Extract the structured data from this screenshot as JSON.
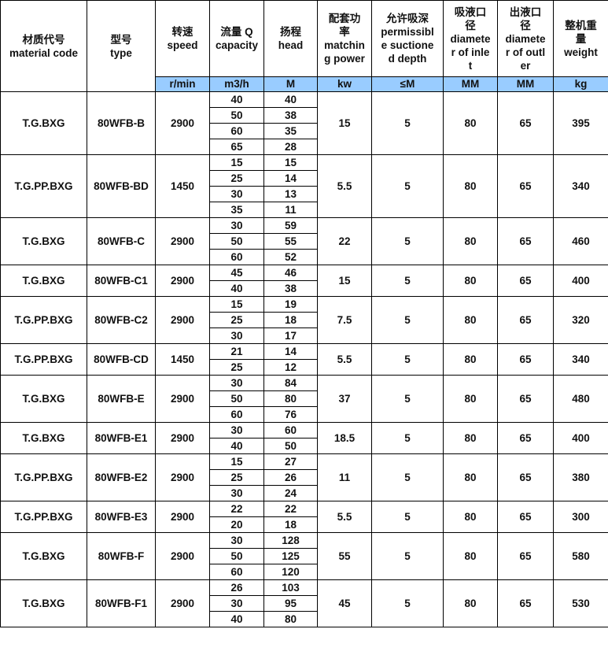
{
  "headers": [
    "材质代号\nmaterial code",
    "型号\ntype",
    "转速\nspeed",
    "流量 Q\ncapacity",
    "扬程\nhead",
    "配套功\n率\nmatchin\ng power",
    "允许吸深\npermissibl\ne suctione\nd depth",
    "吸液口\n径\ndiamete\nr of inle\nt",
    "出液口\n径\ndiamete\nr of outl\ner",
    "整机重\n量\nweight"
  ],
  "units": [
    "r/min",
    "m3/h",
    "M",
    "kw",
    "≤M",
    "MM",
    "MM",
    "kg"
  ],
  "unit_color": "#99ccff",
  "groups": [
    {
      "material": "T.G.BXG",
      "type": "80WFB-B",
      "speed": "2900",
      "flows": [
        [
          "40",
          "40"
        ],
        [
          "50",
          "38"
        ],
        [
          "60",
          "35"
        ],
        [
          "65",
          "28"
        ]
      ],
      "power": "15",
      "suction": "5",
      "inlet": "80",
      "outlet": "65",
      "weight": "395"
    },
    {
      "material": "T.G.PP.BXG",
      "type": "80WFB-BD",
      "speed": "1450",
      "flows": [
        [
          "15",
          "15"
        ],
        [
          "25",
          "14"
        ],
        [
          "30",
          "13"
        ],
        [
          "35",
          "11"
        ]
      ],
      "power": "5.5",
      "suction": "5",
      "inlet": "80",
      "outlet": "65",
      "weight": "340"
    },
    {
      "material": "T.G.BXG",
      "type": "80WFB-C",
      "speed": "2900",
      "flows": [
        [
          "30",
          "59"
        ],
        [
          "50",
          "55"
        ],
        [
          "60",
          "52"
        ]
      ],
      "power": "22",
      "suction": "5",
      "inlet": "80",
      "outlet": "65",
      "weight": "460"
    },
    {
      "material": "T.G.BXG",
      "type": "80WFB-C1",
      "speed": "2900",
      "flows": [
        [
          "45",
          "46"
        ],
        [
          "40",
          "38"
        ]
      ],
      "power": "15",
      "suction": "5",
      "inlet": "80",
      "outlet": "65",
      "weight": "400"
    },
    {
      "material": "T.G.PP.BXG",
      "type": "80WFB-C2",
      "speed": "2900",
      "flows": [
        [
          "15",
          "19"
        ],
        [
          "25",
          "18"
        ],
        [
          "30",
          "17"
        ]
      ],
      "power": "7.5",
      "suction": "5",
      "inlet": "80",
      "outlet": "65",
      "weight": "320"
    },
    {
      "material": "T.G.PP.BXG",
      "type": "80WFB-CD",
      "speed": "1450",
      "flows": [
        [
          "21",
          "14"
        ],
        [
          "25",
          "12"
        ]
      ],
      "power": "5.5",
      "suction": "5",
      "inlet": "80",
      "outlet": "65",
      "weight": "340"
    },
    {
      "material": "T.G.BXG",
      "type": "80WFB-E",
      "speed": "2900",
      "flows": [
        [
          "30",
          "84"
        ],
        [
          "50",
          "80"
        ],
        [
          "60",
          "76"
        ]
      ],
      "power": "37",
      "suction": "5",
      "inlet": "80",
      "outlet": "65",
      "weight": "480"
    },
    {
      "material": "T.G.BXG",
      "type": "80WFB-E1",
      "speed": "2900",
      "flows": [
        [
          "30",
          "60"
        ],
        [
          "40",
          "50"
        ]
      ],
      "power": "18.5",
      "suction": "5",
      "inlet": "80",
      "outlet": "65",
      "weight": "400"
    },
    {
      "material": "T.G.PP.BXG",
      "type": "80WFB-E2",
      "speed": "2900",
      "flows": [
        [
          "15",
          "27"
        ],
        [
          "25",
          "26"
        ],
        [
          "30",
          "24"
        ]
      ],
      "power": "11",
      "suction": "5",
      "inlet": "80",
      "outlet": "65",
      "weight": "380"
    },
    {
      "material": "T.G.PP.BXG",
      "type": "80WFB-E3",
      "speed": "2900",
      "flows": [
        [
          "22",
          "22"
        ],
        [
          "20",
          "18"
        ]
      ],
      "power": "5.5",
      "suction": "5",
      "inlet": "80",
      "outlet": "65",
      "weight": "300"
    },
    {
      "material": "T.G.BXG",
      "type": "80WFB-F",
      "speed": "2900",
      "flows": [
        [
          "30",
          "128"
        ],
        [
          "50",
          "125"
        ],
        [
          "60",
          "120"
        ]
      ],
      "power": "55",
      "suction": "5",
      "inlet": "80",
      "outlet": "65",
      "weight": "580"
    },
    {
      "material": "T.G.BXG",
      "type": "80WFB-F1",
      "speed": "2900",
      "flows": [
        [
          "26",
          "103"
        ],
        [
          "30",
          "95"
        ],
        [
          "40",
          "80"
        ]
      ],
      "power": "45",
      "suction": "5",
      "inlet": "80",
      "outlet": "65",
      "weight": "530"
    }
  ]
}
